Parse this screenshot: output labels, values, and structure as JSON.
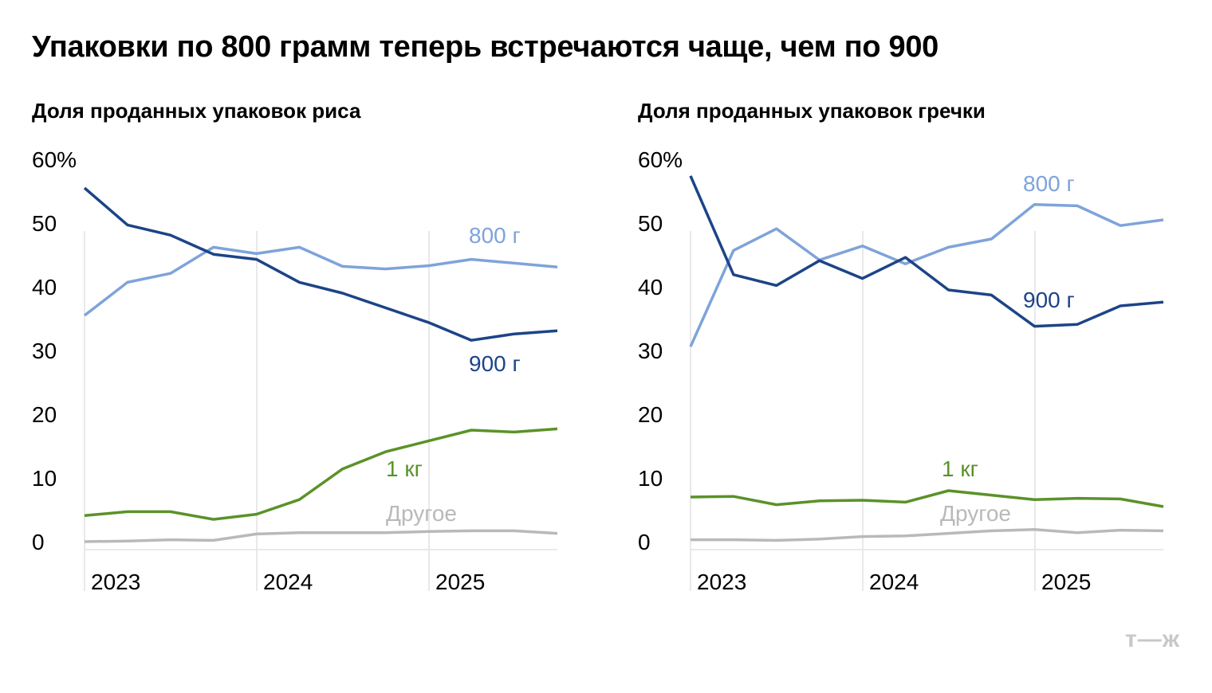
{
  "title": "Упаковки по 800 грамм теперь встречаются чаще, чем по 900",
  "logo": "т—ж",
  "colors": {
    "800": "#7fa3da",
    "900": "#1c4487",
    "1kg": "#5a9228",
    "other": "#b9b9b9",
    "grid": "#e2e2e2"
  },
  "chart_data": [
    {
      "type": "line",
      "title": "Доля проданных упаковок риса",
      "x_ticks": [
        "2023",
        "2024",
        "2025"
      ],
      "y_ticks": [
        "60%",
        "50",
        "40",
        "30",
        "20",
        "10",
        "0"
      ],
      "ylim": [
        0,
        60
      ],
      "grid": "vertical year lines",
      "series": [
        {
          "name": "800 г",
          "color_key": "800",
          "values": [
            35.5,
            40.7,
            42.1,
            46.2,
            45.2,
            46.2,
            43.2,
            42.8,
            43.3,
            44.3,
            43.7,
            43.1
          ]
        },
        {
          "name": "900 г",
          "color_key": "900",
          "values": [
            55.5,
            49.7,
            48.1,
            45.1,
            44.3,
            40.7,
            39.0,
            36.7,
            34.4,
            31.6,
            32.6,
            33.1
          ]
        },
        {
          "name": "1 кг",
          "color_key": "1kg",
          "values": [
            4.1,
            4.7,
            4.7,
            3.5,
            4.3,
            6.6,
            11.4,
            14.1,
            15.8,
            17.5,
            17.2,
            17.7
          ]
        },
        {
          "name": "Другое",
          "color_key": "other",
          "values": [
            0,
            0.1,
            0.3,
            0.2,
            1.2,
            1.4,
            1.4,
            1.4,
            1.6,
            1.7,
            1.7,
            1.3
          ]
        }
      ]
    },
    {
      "type": "line",
      "title": "Доля проданных упаковок гречки",
      "x_ticks": [
        "2023",
        "2024",
        "2025"
      ],
      "y_ticks": [
        "60%",
        "50",
        "40",
        "30",
        "20",
        "10",
        "0"
      ],
      "ylim": [
        0,
        60
      ],
      "grid": "vertical year lines",
      "series": [
        {
          "name": "800 г",
          "color_key": "800",
          "values": [
            30.6,
            45.7,
            49.1,
            44.2,
            46.4,
            43.6,
            46.2,
            47.5,
            52.9,
            52.7,
            49.6,
            50.5
          ]
        },
        {
          "name": "900 г",
          "color_key": "900",
          "values": [
            57.4,
            41.9,
            40.2,
            44.1,
            41.3,
            44.6,
            39.5,
            38.7,
            33.8,
            34.1,
            37.0,
            37.6
          ]
        },
        {
          "name": "1 кг",
          "color_key": "1kg",
          "values": [
            7.0,
            7.1,
            5.8,
            6.4,
            6.5,
            6.2,
            8.0,
            7.3,
            6.6,
            6.8,
            6.7,
            5.5
          ]
        },
        {
          "name": "Другое",
          "color_key": "other",
          "values": [
            0.3,
            0.3,
            0.2,
            0.4,
            0.8,
            0.9,
            1.3,
            1.7,
            1.9,
            1.4,
            1.8,
            1.7
          ]
        }
      ]
    }
  ]
}
